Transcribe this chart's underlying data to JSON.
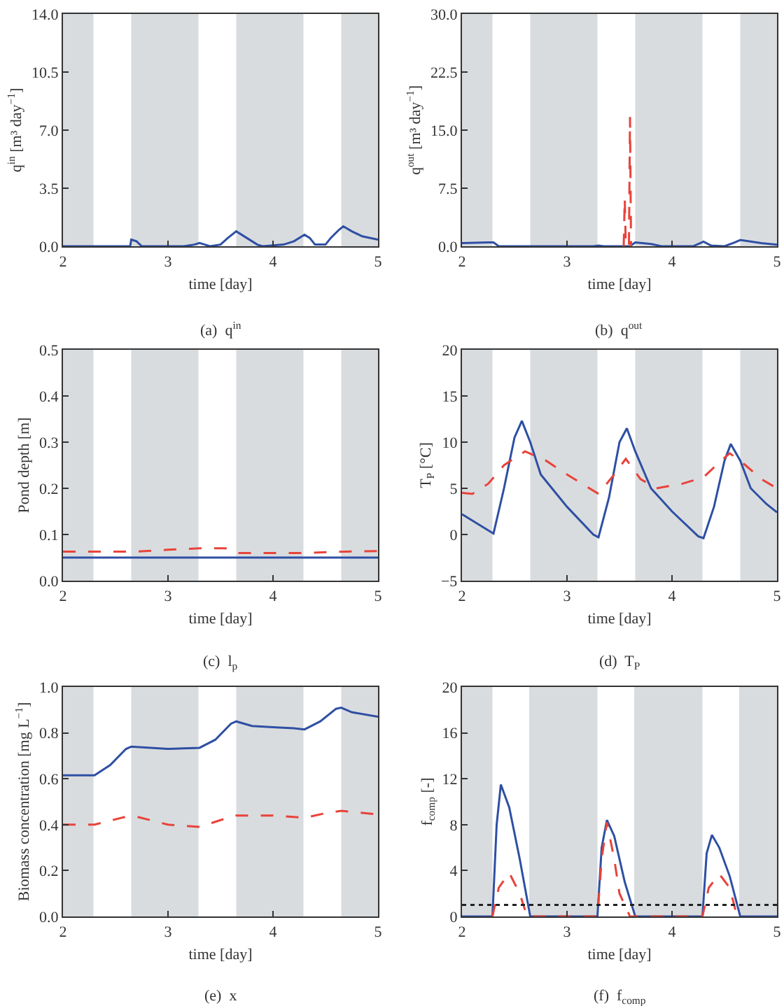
{
  "chart_data": [
    {
      "type": "line",
      "xlabel": "time [day]",
      "ylabel": "q$^{in}$ [m³ day$^{−1}$]",
      "annotations": [
        "(a)  q$^{in}$"
      ],
      "xlim": [
        2,
        5
      ],
      "xticks": [
        2,
        3,
        4,
        5
      ],
      "ylim": [
        0,
        14
      ],
      "yticks": [
        {
          "value": 0,
          "label": "0.0"
        },
        3.5,
        {
          "value": 7,
          "label": "7.0"
        },
        10.5,
        {
          "value": 14,
          "label": "14.0"
        }
      ],
      "grid": false,
      "marker": "none",
      "bands": [
        {
          "axis": "x",
          "from": 2,
          "to": 2.29,
          "color": "#d9dcdf"
        },
        {
          "axis": "x",
          "from": 2.65,
          "to": 3.29,
          "color": "#d9dcdf"
        },
        {
          "axis": "x",
          "from": 3.65,
          "to": 4.29,
          "color": "#d9dcdf"
        },
        {
          "axis": "x",
          "from": 4.65,
          "to": 5,
          "color": "#d9dcdf"
        }
      ],
      "series": [
        {
          "color": "#2e4fa3",
          "line_style": "solid",
          "x": [
            2,
            2.64,
            2.65,
            2.7,
            2.75,
            3.15,
            3.25,
            3.3,
            3.35,
            3.4,
            3.5,
            3.57,
            3.65,
            3.75,
            3.85,
            3.9,
            4.1,
            4.2,
            4.3,
            4.35,
            4.4,
            4.5,
            4.55,
            4.63,
            4.67,
            4.75,
            4.85,
            5
          ],
          "values": [
            0,
            0,
            0.4,
            0.3,
            0,
            0,
            0.1,
            0.2,
            0.1,
            0,
            0.1,
            0.5,
            0.9,
            0.5,
            0.1,
            0,
            0.1,
            0.3,
            0.7,
            0.5,
            0.1,
            0.1,
            0.5,
            1.0,
            1.2,
            0.9,
            0.6,
            0.4
          ]
        }
      ]
    },
    {
      "type": "line",
      "xlabel": "time [day]",
      "ylabel": "q$^{out}$ [m³ day$^{−1}$]",
      "annotations": [
        "(b)  q$^{out}$"
      ],
      "xlim": [
        2,
        5
      ],
      "xticks": [
        2,
        3,
        4,
        5
      ],
      "ylim": [
        0,
        30
      ],
      "yticks": [
        {
          "value": 0,
          "label": "0.0"
        },
        7.5,
        {
          "value": 15,
          "label": "15.0"
        },
        22.5,
        {
          "value": 30,
          "label": "30.0"
        }
      ],
      "grid": false,
      "marker": "none",
      "bands": [
        {
          "axis": "x",
          "from": 2,
          "to": 2.29,
          "color": "#d9dcdf"
        },
        {
          "axis": "x",
          "from": 2.65,
          "to": 3.29,
          "color": "#d9dcdf"
        },
        {
          "axis": "x",
          "from": 3.65,
          "to": 4.29,
          "color": "#d9dcdf"
        },
        {
          "axis": "x",
          "from": 4.65,
          "to": 5,
          "color": "#d9dcdf"
        }
      ],
      "series": [
        {
          "color": "#2e4fa3",
          "line_style": "solid",
          "x": [
            2,
            2.25,
            2.3,
            2.35,
            3.25,
            3.3,
            3.35,
            3.6,
            3.65,
            3.8,
            3.9,
            4.2,
            4.3,
            4.37,
            4.5,
            4.6,
            4.65,
            4.85,
            5
          ],
          "values": [
            0.4,
            0.5,
            0.5,
            0,
            0,
            0.1,
            0,
            0,
            0.5,
            0.3,
            0,
            0,
            0.6,
            0.1,
            0,
            0.5,
            0.8,
            0.4,
            0.2
          ]
        },
        {
          "color": "#e8433a",
          "line_style": "dashed",
          "x": [
            3.54,
            3.55,
            3.56,
            3.59,
            3.6,
            3.61
          ],
          "values": [
            0,
            6.2,
            0,
            0,
            16.7,
            0
          ]
        }
      ]
    },
    {
      "type": "line",
      "xlabel": "time [day]",
      "ylabel": "Pond depth [m]",
      "annotations": [
        "(c)  l$_{p}$"
      ],
      "xlim": [
        2,
        5
      ],
      "xticks": [
        2,
        3,
        4,
        5
      ],
      "ylim": [
        0,
        0.5
      ],
      "yticks": [
        {
          "value": 0,
          "label": "0.0"
        },
        0.1,
        0.2,
        0.3,
        0.4,
        0.5
      ],
      "grid": false,
      "marker": "none",
      "bands": [
        {
          "axis": "x",
          "from": 2,
          "to": 2.29,
          "color": "#d9dcdf"
        },
        {
          "axis": "x",
          "from": 2.65,
          "to": 3.29,
          "color": "#d9dcdf"
        },
        {
          "axis": "x",
          "from": 3.65,
          "to": 4.29,
          "color": "#d9dcdf"
        },
        {
          "axis": "x",
          "from": 4.65,
          "to": 5,
          "color": "#d9dcdf"
        }
      ],
      "series": [
        {
          "color": "#2e4fa3",
          "line_style": "solid",
          "x": [
            2,
            5
          ],
          "values": [
            0.05,
            0.05
          ]
        },
        {
          "color": "#e8433a",
          "line_style": "dashed",
          "x": [
            2,
            2.7,
            3.0,
            3.3,
            3.55,
            3.65,
            4.3,
            4.7,
            5
          ],
          "values": [
            0.063,
            0.063,
            0.067,
            0.07,
            0.07,
            0.06,
            0.06,
            0.063,
            0.064
          ]
        }
      ]
    },
    {
      "type": "line",
      "xlabel": "time [day]",
      "ylabel": "T$_{P}$ [°C]",
      "annotations": [
        "(d)  T$_{P}$"
      ],
      "xlim": [
        2,
        5
      ],
      "xticks": [
        2,
        3,
        4,
        5
      ],
      "ylim": [
        -5,
        20
      ],
      "yticks": [
        {
          "value": -5,
          "label": "−5"
        },
        0,
        5,
        10,
        15,
        20
      ],
      "grid": false,
      "marker": "none",
      "bands": [
        {
          "axis": "x",
          "from": 2,
          "to": 2.29,
          "color": "#d9dcdf"
        },
        {
          "axis": "x",
          "from": 2.65,
          "to": 3.29,
          "color": "#d9dcdf"
        },
        {
          "axis": "x",
          "from": 3.65,
          "to": 4.29,
          "color": "#d9dcdf"
        },
        {
          "axis": "x",
          "from": 4.65,
          "to": 5,
          "color": "#d9dcdf"
        }
      ],
      "series": [
        {
          "color": "#2e4fa3",
          "line_style": "solid",
          "x": [
            2,
            2.3,
            2.4,
            2.5,
            2.57,
            2.65,
            2.75,
            3.0,
            3.25,
            3.3,
            3.4,
            3.5,
            3.57,
            3.65,
            3.8,
            4.0,
            4.25,
            4.3,
            4.4,
            4.5,
            4.56,
            4.65,
            4.75,
            4.9,
            5
          ],
          "values": [
            2.2,
            0.1,
            5,
            10.5,
            12.3,
            10,
            6.5,
            3,
            0,
            -0.3,
            4,
            10,
            11.5,
            9,
            5,
            2.5,
            -0.2,
            -0.4,
            3,
            8,
            9.8,
            8,
            5,
            3.3,
            2.4
          ]
        },
        {
          "color": "#e8433a",
          "line_style": "dashed",
          "x": [
            2,
            2.1,
            2.25,
            2.4,
            2.6,
            2.8,
            3.0,
            3.3,
            3.45,
            3.56,
            3.7,
            3.85,
            4.1,
            4.3,
            4.45,
            4.55,
            4.7,
            4.85,
            5
          ],
          "values": [
            4.5,
            4.4,
            5.5,
            7.5,
            9,
            8,
            6.5,
            4.4,
            6.5,
            8.2,
            6,
            5,
            5.5,
            6.2,
            7.8,
            8.8,
            7.5,
            6,
            5
          ]
        }
      ]
    },
    {
      "type": "line",
      "xlabel": "time [day]",
      "ylabel": "Biomass concentration [mg L$^{−1}$]",
      "annotations": [
        "(e)  x"
      ],
      "xlim": [
        2,
        5
      ],
      "xticks": [
        2,
        3,
        4,
        5
      ],
      "ylim": [
        0,
        1
      ],
      "yticks": [
        {
          "value": 0,
          "label": "0.0"
        },
        0.2,
        0.4,
        0.6,
        0.8,
        {
          "value": 1,
          "label": "1.0"
        }
      ],
      "grid": false,
      "marker": "none",
      "bands": [
        {
          "axis": "x",
          "from": 2,
          "to": 2.29,
          "color": "#d9dcdf"
        },
        {
          "axis": "x",
          "from": 2.65,
          "to": 3.29,
          "color": "#d9dcdf"
        },
        {
          "axis": "x",
          "from": 3.65,
          "to": 4.29,
          "color": "#d9dcdf"
        },
        {
          "axis": "x",
          "from": 4.65,
          "to": 5,
          "color": "#d9dcdf"
        }
      ],
      "series": [
        {
          "color": "#2e4fa3",
          "line_style": "solid",
          "x": [
            2,
            2.3,
            2.45,
            2.6,
            2.65,
            3.0,
            3.3,
            3.45,
            3.6,
            3.65,
            3.8,
            4.0,
            4.2,
            4.3,
            4.45,
            4.6,
            4.65,
            4.75,
            5
          ],
          "values": [
            0.615,
            0.615,
            0.66,
            0.73,
            0.74,
            0.73,
            0.735,
            0.77,
            0.84,
            0.85,
            0.83,
            0.825,
            0.82,
            0.815,
            0.85,
            0.905,
            0.91,
            0.89,
            0.87
          ]
        },
        {
          "color": "#e8433a",
          "line_style": "dashed",
          "x": [
            2,
            2.3,
            2.6,
            2.7,
            3.0,
            3.3,
            3.5,
            3.65,
            4.0,
            4.3,
            4.5,
            4.65,
            5
          ],
          "values": [
            0.4,
            0.4,
            0.435,
            0.435,
            0.4,
            0.39,
            0.42,
            0.44,
            0.44,
            0.43,
            0.45,
            0.46,
            0.445
          ]
        }
      ]
    },
    {
      "type": "line",
      "xlabel": "time [day]",
      "ylabel": "f$_{comp}$ [-]",
      "annotations": [
        "(f)  f$_{comp}$"
      ],
      "xlim": [
        2,
        5
      ],
      "xticks": [
        2,
        3,
        4,
        5
      ],
      "ylim": [
        0,
        20
      ],
      "yticks": [
        0,
        4,
        8,
        12,
        16,
        20
      ],
      "grid": false,
      "marker": "none",
      "bands": [
        {
          "axis": "x",
          "from": 2,
          "to": 2.29,
          "color": "#d9dcdf"
        },
        {
          "axis": "x",
          "from": 2.64,
          "to": 3.29,
          "color": "#d9dcdf"
        },
        {
          "axis": "x",
          "from": 3.64,
          "to": 4.29,
          "color": "#d9dcdf"
        },
        {
          "axis": "x",
          "from": 4.64,
          "to": 5,
          "color": "#d9dcdf"
        }
      ],
      "ref_lines": [
        {
          "axis": "y",
          "value": 1,
          "color": "#222222",
          "line_style": "dotted"
        }
      ],
      "series": [
        {
          "color": "#2e4fa3",
          "line_style": "solid",
          "x": [
            2,
            2.29,
            2.33,
            2.37,
            2.45,
            2.55,
            2.65,
            3.29,
            3.33,
            3.38,
            3.45,
            3.55,
            3.65,
            4.29,
            4.33,
            4.38,
            4.45,
            4.55,
            4.65,
            5
          ],
          "values": [
            0,
            0,
            8,
            11.5,
            9.5,
            5,
            0,
            0,
            6,
            8.4,
            7,
            3,
            0,
            0,
            5.5,
            7.1,
            6,
            3.5,
            0,
            0
          ]
        },
        {
          "color": "#e8433a",
          "line_style": "dashed",
          "x": [
            2.29,
            2.35,
            2.45,
            2.55,
            2.62,
            3.29,
            3.33,
            3.38,
            3.45,
            3.5,
            3.6,
            4.29,
            4.35,
            4.45,
            4.55,
            4.62
          ],
          "values": [
            0,
            2.5,
            3.8,
            2,
            0,
            0,
            5,
            8.2,
            5,
            2,
            0,
            0,
            2.5,
            3.7,
            2.5,
            0
          ]
        }
      ]
    }
  ]
}
